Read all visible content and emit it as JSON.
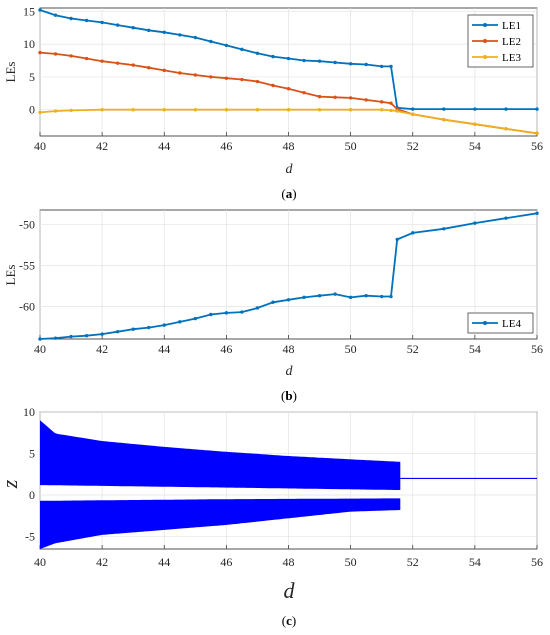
{
  "chart_data": [
    {
      "type": "line",
      "panel_label": "a",
      "xlabel": "d",
      "ylabel": "LEs",
      "xlim": [
        40,
        56
      ],
      "ylim": [
        -4,
        15.5
      ],
      "xticks": [
        40,
        42,
        44,
        46,
        48,
        50,
        52,
        54,
        56
      ],
      "yticks": [
        0,
        5,
        10,
        15
      ],
      "grid": true,
      "legend_position": "top-right",
      "series": [
        {
          "name": "LE1",
          "color": "#0072BD",
          "x": [
            40,
            40.5,
            41,
            41.5,
            42,
            42.5,
            43,
            43.5,
            44,
            44.5,
            45,
            45.5,
            46,
            46.5,
            47,
            47.5,
            48,
            48.5,
            49,
            49.5,
            50,
            50.5,
            51,
            51.3,
            51.5,
            52,
            53,
            54,
            55,
            56
          ],
          "y": [
            15.2,
            14.4,
            13.9,
            13.6,
            13.3,
            12.9,
            12.5,
            12.1,
            11.8,
            11.4,
            11.0,
            10.4,
            9.8,
            9.2,
            8.6,
            8.1,
            7.8,
            7.5,
            7.4,
            7.2,
            7.0,
            6.9,
            6.6,
            6.6,
            0.3,
            0.1,
            0.1,
            0.1,
            0.1,
            0.1
          ]
        },
        {
          "name": "LE2",
          "color": "#D95319",
          "x": [
            40,
            40.5,
            41,
            41.5,
            42,
            42.5,
            43,
            43.5,
            44,
            44.5,
            45,
            45.5,
            46,
            46.5,
            47,
            47.5,
            48,
            48.5,
            49,
            49.5,
            50,
            50.5,
            51,
            51.3,
            51.5,
            52,
            53,
            54,
            55,
            56
          ],
          "y": [
            8.7,
            8.5,
            8.2,
            7.8,
            7.4,
            7.1,
            6.8,
            6.4,
            6.0,
            5.6,
            5.3,
            5.0,
            4.8,
            4.6,
            4.3,
            3.7,
            3.2,
            2.6,
            2.0,
            1.9,
            1.8,
            1.5,
            1.2,
            1.0,
            0.1,
            -0.7,
            -1.5,
            -2.2,
            -2.9,
            -3.6
          ]
        },
        {
          "name": "LE3",
          "color": "#EDB120",
          "x": [
            40,
            40.5,
            41,
            42,
            43,
            44,
            45,
            46,
            47,
            48,
            49,
            50,
            51,
            51.3,
            51.5,
            52,
            53,
            54,
            55,
            56
          ],
          "y": [
            -0.4,
            -0.2,
            -0.1,
            0,
            0,
            0,
            0,
            0,
            0,
            0,
            0,
            0,
            0,
            -0.1,
            -0.2,
            -0.7,
            -1.5,
            -2.2,
            -2.9,
            -3.6
          ]
        }
      ]
    },
    {
      "type": "line",
      "panel_label": "b",
      "xlabel": "d",
      "ylabel": "LEs",
      "xlim": [
        40,
        56
      ],
      "ylim": [
        -64,
        -48.2
      ],
      "xticks": [
        40,
        42,
        44,
        46,
        48,
        50,
        52,
        54,
        56
      ],
      "yticks": [
        -60,
        -55,
        -50
      ],
      "grid": true,
      "legend_position": "bottom-right",
      "series": [
        {
          "name": "LE4",
          "color": "#0072BD",
          "x": [
            40,
            40.5,
            41,
            41.5,
            42,
            42.5,
            43,
            43.5,
            44,
            44.5,
            45,
            45.5,
            46,
            46.5,
            47,
            47.5,
            48,
            48.5,
            49,
            49.5,
            50,
            50.5,
            51,
            51.3,
            51.5,
            52,
            53,
            54,
            55,
            56
          ],
          "y": [
            -64.0,
            -63.9,
            -63.7,
            -63.6,
            -63.4,
            -63.1,
            -62.8,
            -62.6,
            -62.3,
            -61.9,
            -61.5,
            -61.0,
            -60.8,
            -60.7,
            -60.2,
            -59.5,
            -59.2,
            -58.9,
            -58.7,
            -58.5,
            -58.9,
            -58.7,
            -58.8,
            -58.8,
            -51.8,
            -51.0,
            -50.5,
            -49.8,
            -49.2,
            -48.6
          ]
        }
      ]
    },
    {
      "type": "scatter",
      "panel_label": "c",
      "xlabel": "d",
      "ylabel": "z",
      "xlim": [
        40,
        56
      ],
      "ylim": [
        -6.5,
        10
      ],
      "xticks": [
        40,
        42,
        44,
        46,
        48,
        50,
        52,
        54,
        56
      ],
      "yticks": [
        -5,
        0,
        5,
        10
      ],
      "grid": true,
      "color": "#0000FF",
      "bifurcation": {
        "chaotic_range": [
          40,
          51.6
        ],
        "upper_band_top": [
          [
            40,
            9.0
          ],
          [
            40.5,
            7.4
          ],
          [
            42,
            6.5
          ],
          [
            44,
            5.8
          ],
          [
            46,
            5.2
          ],
          [
            48,
            4.7
          ],
          [
            50,
            4.3
          ],
          [
            51.6,
            4.0
          ]
        ],
        "lower_band_bottom": [
          [
            40,
            -6.5
          ],
          [
            40.5,
            -5.8
          ],
          [
            42,
            -4.8
          ],
          [
            44,
            -4.2
          ],
          [
            46,
            -3.6
          ],
          [
            48,
            -2.8
          ],
          [
            50,
            -2.0
          ],
          [
            51.6,
            -1.8
          ]
        ],
        "inner_gap": [
          [
            40,
            1.2,
            -0.7
          ],
          [
            46,
            0.9,
            -0.5
          ],
          [
            51.6,
            0.6,
            -0.4
          ]
        ],
        "fixed_point": {
          "x": [
            51.6,
            56
          ],
          "z": 2.0
        }
      }
    }
  ],
  "captions": [
    "(a)",
    "(b)",
    "(c)"
  ]
}
